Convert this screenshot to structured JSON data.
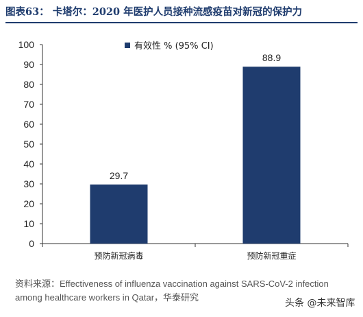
{
  "header": {
    "title": "图表63： 卡塔尔：2020 年医护人员接种流感疫苗对新冠的保护力"
  },
  "chart_data": {
    "type": "bar",
    "categories": [
      "预防新冠病毒",
      "预防新冠重症"
    ],
    "series": [
      {
        "name": "有效性 % (95% CI)",
        "values": [
          29.7,
          88.9
        ]
      }
    ],
    "data_labels": [
      "29.7",
      "88.9"
    ],
    "ylim": [
      0,
      100
    ],
    "yticks": [
      0,
      10,
      20,
      30,
      40,
      50,
      60,
      70,
      80,
      90,
      100
    ],
    "grid": false,
    "legend_position": "top-center",
    "bar_color": "#1f3c6e"
  },
  "source": {
    "line1": "资料来源：Effectiveness of influenza vaccination against SARS-CoV-2 infection",
    "line2": "among healthcare workers in Qatar，华泰研究"
  },
  "watermark": "头条 @未来智库"
}
